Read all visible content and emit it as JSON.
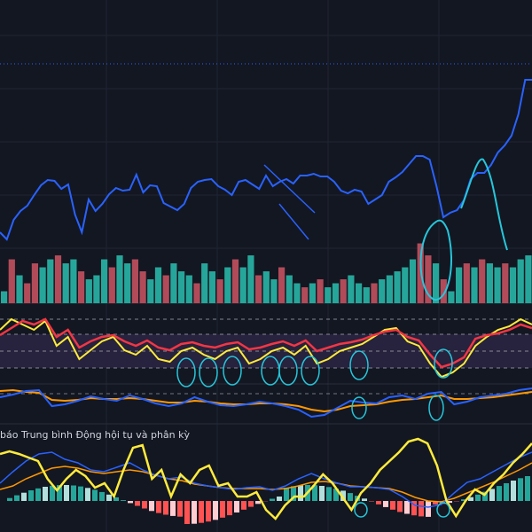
{
  "colors": {
    "background": "#131722",
    "grid": "#1f2433",
    "price_line": "#2962ff",
    "volume_up": "#26a69a",
    "volume_down": "#b24b59",
    "rsi_band": "#2a2340",
    "rsi_main": "#f23645",
    "rsi_signal": "#ffeb3b",
    "level_dash": "#b2b5be",
    "macd_line": "#2962ff",
    "signal_line": "#ff9800",
    "drawing": "#26c6da",
    "hist_up_strong": "#26a69a",
    "hist_up_weak": "#b2dfdb",
    "hist_down_strong": "#ff5252",
    "hist_down_weak": "#ffcdd2"
  },
  "bottom_pane": {
    "title": "báo Trung bình Động hội tụ và phân kỳ"
  },
  "chart_data": {
    "type": "line",
    "note_panes": "price line with volume, oscillator pane, second oscillator pane, MACD pane",
    "price": [
      262,
      270,
      248,
      238,
      232,
      220,
      209,
      203,
      204,
      213,
      208,
      242,
      262,
      225,
      238,
      230,
      219,
      212,
      215,
      214,
      197,
      217,
      209,
      210,
      229,
      233,
      237,
      230,
      212,
      205,
      203,
      202,
      210,
      214,
      220,
      205,
      203,
      208,
      213,
      198,
      210,
      205,
      202,
      207,
      198,
      198,
      196,
      199,
      199,
      205,
      215,
      218,
      214,
      216,
      230,
      225,
      220,
      205,
      200,
      194,
      185,
      176,
      176,
      180,
      210,
      245,
      240,
      237,
      226,
      202,
      195,
      195,
      186,
      172,
      164,
      153,
      129,
      90,
      90
    ],
    "volume": [
      0.15,
      0.55,
      0.35,
      0.25,
      0.5,
      0.45,
      0.55,
      0.6,
      0.5,
      0.55,
      0.4,
      0.3,
      0.35,
      0.55,
      0.45,
      0.6,
      0.5,
      0.55,
      0.4,
      0.3,
      0.45,
      0.35,
      0.5,
      0.4,
      0.35,
      0.25,
      0.5,
      0.4,
      0.3,
      0.45,
      0.55,
      0.45,
      0.6,
      0.35,
      0.4,
      0.3,
      0.45,
      0.35,
      0.25,
      0.2,
      0.25,
      0.3,
      0.2,
      0.25,
      0.3,
      0.35,
      0.25,
      0.2,
      0.25,
      0.3,
      0.35,
      0.4,
      0.45,
      0.55,
      0.75,
      0.6,
      0.5,
      0.3,
      0.15,
      0.45,
      0.5,
      0.45,
      0.55,
      0.5,
      0.45,
      0.5,
      0.45,
      0.55,
      0.6
    ],
    "volume_down_index": [
      1,
      3,
      4,
      7,
      10,
      14,
      17,
      18,
      21,
      25,
      28,
      30,
      33,
      36,
      39,
      41,
      44,
      48,
      54,
      55,
      57,
      60,
      62,
      65
    ],
    "rsi": [
      378,
      370,
      362,
      366,
      360,
      380,
      372,
      392,
      385,
      380,
      378,
      385,
      390,
      384,
      392,
      395,
      388,
      386,
      390,
      392,
      388,
      386,
      394,
      392,
      388,
      385,
      390,
      384,
      396,
      392,
      388,
      386,
      383,
      378,
      374,
      372,
      380,
      384,
      400,
      414,
      410,
      403,
      382,
      378,
      376,
      372,
      366,
      370
    ],
    "rsi_signal": [
      372,
      360,
      366,
      372,
      362,
      390,
      380,
      405,
      395,
      385,
      380,
      395,
      400,
      390,
      405,
      408,
      396,
      392,
      400,
      405,
      396,
      392,
      410,
      405,
      396,
      392,
      400,
      390,
      410,
      405,
      396,
      392,
      388,
      380,
      372,
      370,
      385,
      390,
      410,
      425,
      420,
      410,
      390,
      380,
      372,
      368,
      360,
      366
    ],
    "macd": [
      448,
      445,
      441,
      440,
      458,
      456,
      452,
      447,
      450,
      452,
      446,
      450,
      455,
      458,
      455,
      448,
      453,
      457,
      458,
      456,
      453,
      455,
      458,
      462,
      470,
      468,
      460,
      452,
      454,
      455,
      448,
      446,
      450,
      444,
      442,
      456,
      453,
      448,
      446,
      444,
      440,
      438
    ],
    "signal": [
      441,
      440,
      442,
      443,
      451,
      452,
      451,
      449,
      450,
      450,
      449,
      450,
      452,
      454,
      454,
      452,
      453,
      455,
      456,
      456,
      455,
      455,
      456,
      458,
      462,
      464,
      462,
      458,
      457,
      456,
      453,
      451,
      450,
      448,
      446,
      450,
      450,
      449,
      448,
      446,
      444,
      442
    ],
    "macd_bottom_line": [
      545,
      532,
      520,
      512,
      510,
      518,
      522,
      530,
      532,
      527,
      522,
      530,
      536,
      540,
      538,
      545,
      548,
      550,
      552,
      550,
      549,
      553,
      548,
      540,
      534,
      540,
      545,
      549,
      549,
      550,
      552,
      560,
      570,
      572,
      569,
      556,
      544,
      540,
      532,
      524,
      516,
      510
    ],
    "macd_bottom_signal": [
      552,
      548,
      540,
      534,
      528,
      526,
      528,
      532,
      534,
      532,
      530,
      532,
      536,
      540,
      542,
      546,
      548,
      550,
      551,
      551,
      551,
      552,
      551,
      548,
      544,
      543,
      545,
      548,
      549,
      550,
      551,
      555,
      561,
      565,
      566,
      562,
      556,
      550,
      544,
      537,
      530,
      522
    ],
    "macd_yellow": [
      512,
      509,
      512,
      516,
      520,
      540,
      553,
      540,
      530,
      537,
      550,
      545,
      560,
      530,
      505,
      502,
      540,
      530,
      560,
      535,
      545,
      530,
      525,
      548,
      545,
      560,
      560,
      555,
      575,
      585,
      570,
      560,
      560,
      548,
      535,
      545,
      560,
      575,
      556,
      545,
      530,
      520,
      510,
      498,
      495,
      500,
      525,
      565,
      582,
      565,
      552,
      558,
      545,
      535,
      522,
      512,
      500
    ]
  }
}
